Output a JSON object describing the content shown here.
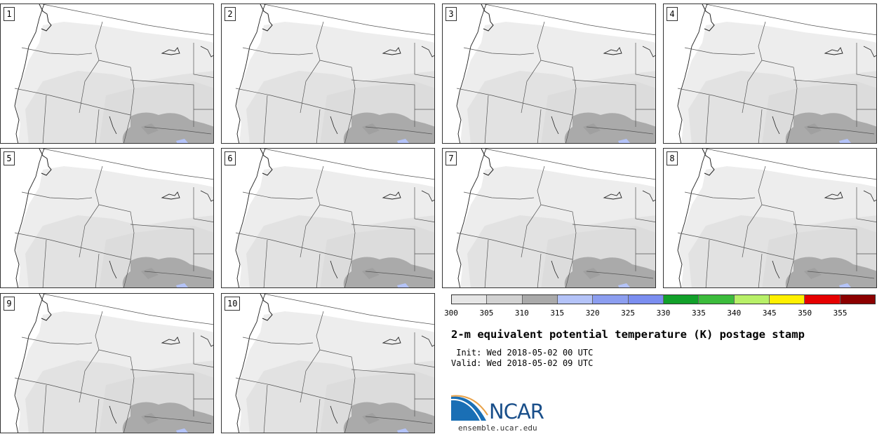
{
  "panels": [
    {
      "label": "1"
    },
    {
      "label": "2"
    },
    {
      "label": "3"
    },
    {
      "label": "4"
    },
    {
      "label": "5"
    },
    {
      "label": "6"
    },
    {
      "label": "7"
    },
    {
      "label": "8"
    },
    {
      "label": "9"
    },
    {
      "label": "10"
    }
  ],
  "colorbar": {
    "colors": [
      "#e6e6e6",
      "#d2d2d2",
      "#aaaaaa",
      "#b4c3f8",
      "#8c9ef0",
      "#7b8ef0",
      "#12a12a",
      "#3cbc3c",
      "#b8f068",
      "#fff000",
      "#e60000",
      "#8c0000"
    ],
    "ticks": [
      "300",
      "305",
      "310",
      "315",
      "320",
      "325",
      "330",
      "335",
      "340",
      "345",
      "350",
      "355"
    ]
  },
  "title": "2-m equivalent potential temperature (K) postage stamp",
  "init": " Init: Wed 2018-05-02 00 UTC",
  "valid": "Valid: Wed 2018-05-02 09 UTC",
  "logo": {
    "text": "NCAR",
    "url": "ensemble.ucar.edu"
  }
}
